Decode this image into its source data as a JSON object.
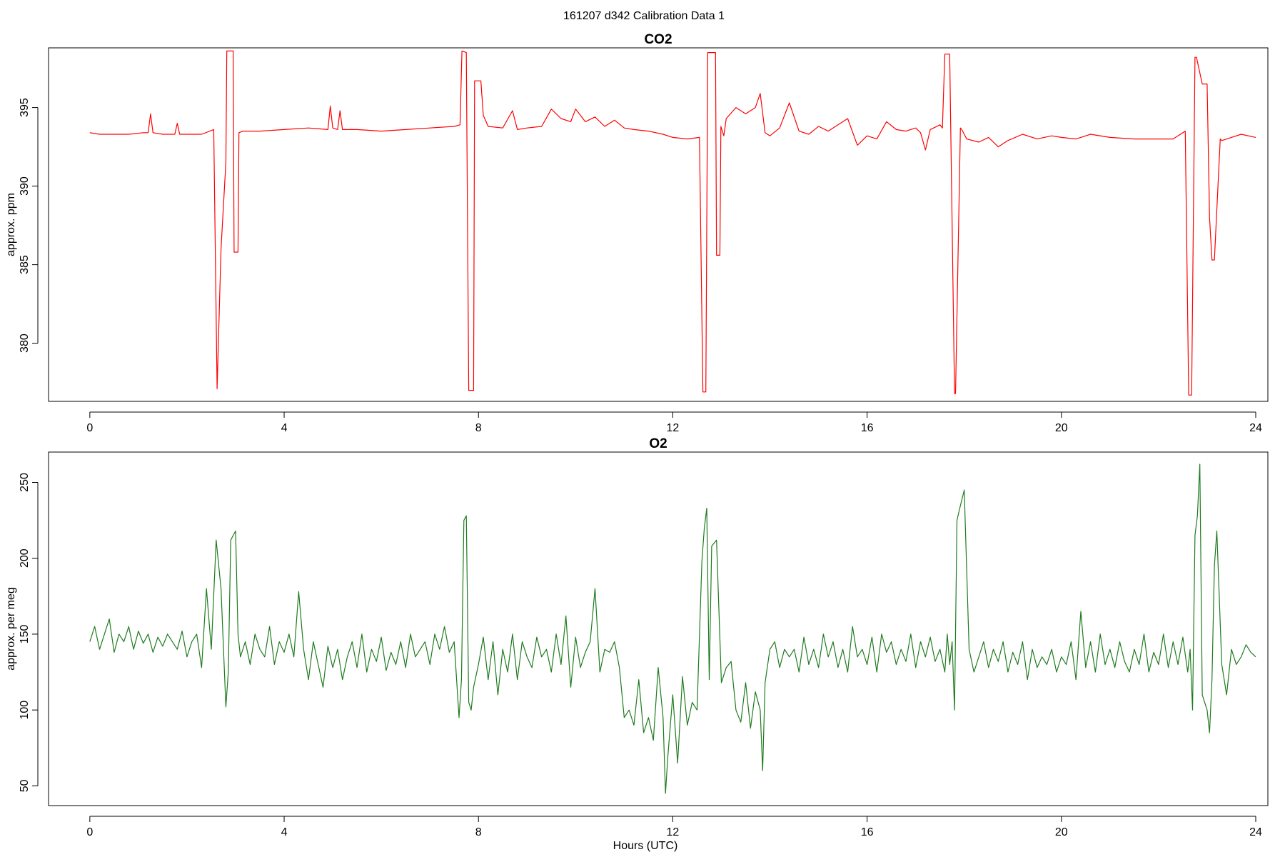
{
  "suptitle": "161207   d342   Calibration Data 1",
  "xlabel": "Hours (UTC)",
  "chart_data": [
    {
      "type": "line",
      "title": "CO2",
      "xlabel": "",
      "ylabel": "approx. ppm",
      "xlim": [
        -0.85,
        24.25
      ],
      "ylim": [
        376.3,
        398.8
      ],
      "xticks": [
        0,
        4,
        8,
        12,
        16,
        20,
        24
      ],
      "yticks": [
        380,
        385,
        390,
        395
      ],
      "grid": false,
      "color": "#ff0000",
      "series": [
        {
          "x": [
            0.0,
            0.2,
            0.5,
            0.8,
            1.1,
            1.2,
            1.25,
            1.3,
            1.5,
            1.75,
            1.8,
            1.85,
            2.0,
            2.3,
            2.55,
            2.62,
            2.7,
            2.8,
            2.82,
            2.95,
            2.97,
            3.05,
            3.07,
            3.15,
            3.5,
            4.0,
            4.5,
            4.9,
            4.95,
            5.0,
            5.1,
            5.15,
            5.2,
            5.5,
            6.0,
            6.5,
            7.0,
            7.5,
            7.62,
            7.66,
            7.75,
            7.8,
            7.9,
            7.92,
            8.05,
            8.1,
            8.2,
            8.5,
            8.7,
            8.8,
            9.0,
            9.3,
            9.5,
            9.7,
            9.9,
            10.0,
            10.2,
            10.4,
            10.6,
            10.8,
            11.0,
            11.2,
            11.5,
            11.8,
            12.0,
            12.3,
            12.55,
            12.62,
            12.68,
            12.72,
            12.88,
            12.9,
            12.97,
            12.99,
            13.05,
            13.1,
            13.3,
            13.5,
            13.7,
            13.8,
            13.9,
            14.0,
            14.2,
            14.4,
            14.6,
            14.8,
            15.0,
            15.2,
            15.4,
            15.6,
            15.8,
            16.0,
            16.2,
            16.4,
            16.6,
            16.8,
            17.0,
            17.1,
            17.2,
            17.3,
            17.5,
            17.55,
            17.6,
            17.7,
            17.8,
            17.82,
            17.92,
            17.95,
            18.05,
            18.3,
            18.5,
            18.7,
            18.9,
            19.2,
            19.5,
            19.8,
            20.0,
            20.3,
            20.6,
            21.0,
            21.5,
            22.0,
            22.3,
            22.55,
            22.62,
            22.68,
            22.75,
            22.78,
            22.9,
            23.0,
            23.05,
            23.1,
            23.15,
            23.27,
            23.3,
            23.5,
            23.7,
            24.0
          ],
          "y": [
            393.4,
            393.3,
            393.3,
            393.3,
            393.4,
            393.4,
            394.6,
            393.4,
            393.3,
            393.3,
            394.0,
            393.3,
            393.3,
            393.3,
            393.6,
            377.1,
            386.0,
            391.5,
            398.6,
            398.6,
            385.8,
            385.8,
            393.4,
            393.5,
            393.5,
            393.6,
            393.7,
            393.6,
            395.1,
            393.7,
            393.6,
            394.8,
            393.6,
            393.6,
            393.5,
            393.6,
            393.7,
            393.8,
            393.9,
            398.6,
            398.5,
            377.0,
            377.0,
            396.7,
            396.7,
            394.5,
            393.8,
            393.7,
            394.8,
            393.6,
            393.7,
            393.8,
            394.9,
            394.3,
            394.1,
            394.9,
            394.1,
            394.4,
            393.8,
            394.2,
            393.7,
            393.6,
            393.5,
            393.3,
            393.1,
            393.0,
            393.1,
            376.9,
            376.9,
            398.5,
            398.5,
            385.6,
            385.6,
            393.8,
            393.2,
            394.3,
            395.0,
            394.6,
            395.0,
            395.9,
            393.4,
            393.2,
            393.7,
            395.3,
            393.5,
            393.3,
            393.8,
            393.5,
            393.9,
            394.3,
            392.6,
            393.2,
            393.0,
            394.1,
            393.6,
            393.5,
            393.7,
            393.4,
            392.3,
            393.6,
            393.9,
            393.7,
            398.4,
            398.4,
            376.8,
            376.8,
            393.7,
            393.6,
            393.0,
            392.8,
            393.1,
            392.5,
            392.9,
            393.3,
            393.0,
            393.2,
            393.1,
            393.0,
            393.3,
            393.1,
            393.0,
            393.0,
            393.0,
            393.5,
            376.7,
            376.7,
            398.2,
            398.2,
            396.5,
            396.5,
            388.0,
            385.3,
            385.3,
            393.0,
            392.9,
            393.1,
            393.3,
            393.1
          ]
        }
      ]
    },
    {
      "type": "line",
      "title": "O2",
      "xlabel": "Hours (UTC)",
      "ylabel": "approx. per meg",
      "xlim": [
        -0.85,
        24.25
      ],
      "ylim": [
        37,
        270
      ],
      "xticks": [
        0,
        4,
        8,
        12,
        16,
        20,
        24
      ],
      "yticks": [
        50,
        100,
        150,
        200,
        250
      ],
      "grid": false,
      "color": "#1e7b1e",
      "series": [
        {
          "x": [
            0.0,
            0.1,
            0.2,
            0.3,
            0.4,
            0.5,
            0.6,
            0.7,
            0.8,
            0.9,
            1.0,
            1.1,
            1.2,
            1.3,
            1.4,
            1.5,
            1.6,
            1.7,
            1.8,
            1.9,
            2.0,
            2.1,
            2.2,
            2.3,
            2.4,
            2.5,
            2.6,
            2.7,
            2.8,
            2.85,
            2.9,
            3.0,
            3.05,
            3.1,
            3.2,
            3.3,
            3.4,
            3.5,
            3.6,
            3.7,
            3.8,
            3.9,
            4.0,
            4.1,
            4.2,
            4.3,
            4.4,
            4.5,
            4.6,
            4.7,
            4.8,
            4.9,
            5.0,
            5.1,
            5.2,
            5.3,
            5.4,
            5.5,
            5.6,
            5.7,
            5.8,
            5.9,
            6.0,
            6.1,
            6.2,
            6.3,
            6.4,
            6.5,
            6.6,
            6.7,
            6.8,
            6.9,
            7.0,
            7.1,
            7.2,
            7.3,
            7.4,
            7.5,
            7.6,
            7.65,
            7.7,
            7.75,
            7.8,
            7.85,
            7.9,
            8.0,
            8.1,
            8.2,
            8.3,
            8.4,
            8.5,
            8.6,
            8.7,
            8.8,
            8.9,
            9.0,
            9.1,
            9.2,
            9.3,
            9.4,
            9.5,
            9.6,
            9.7,
            9.8,
            9.9,
            10.0,
            10.1,
            10.2,
            10.3,
            10.4,
            10.5,
            10.6,
            10.7,
            10.8,
            10.9,
            11.0,
            11.1,
            11.2,
            11.3,
            11.4,
            11.5,
            11.6,
            11.7,
            11.8,
            11.85,
            11.9,
            12.0,
            12.1,
            12.2,
            12.3,
            12.4,
            12.5,
            12.6,
            12.65,
            12.7,
            12.75,
            12.8,
            12.9,
            13.0,
            13.1,
            13.2,
            13.3,
            13.4,
            13.5,
            13.6,
            13.7,
            13.8,
            13.85,
            13.9,
            14.0,
            14.1,
            14.2,
            14.3,
            14.4,
            14.5,
            14.6,
            14.7,
            14.8,
            14.9,
            15.0,
            15.1,
            15.2,
            15.3,
            15.4,
            15.5,
            15.6,
            15.7,
            15.8,
            15.9,
            16.0,
            16.1,
            16.2,
            16.3,
            16.4,
            16.5,
            16.6,
            16.7,
            16.8,
            16.9,
            17.0,
            17.1,
            17.2,
            17.3,
            17.4,
            17.5,
            17.6,
            17.65,
            17.7,
            17.75,
            17.8,
            17.85,
            17.9,
            18.0,
            18.1,
            18.2,
            18.3,
            18.4,
            18.5,
            18.6,
            18.7,
            18.8,
            18.9,
            19.0,
            19.1,
            19.2,
            19.3,
            19.4,
            19.5,
            19.6,
            19.7,
            19.8,
            19.9,
            20.0,
            20.1,
            20.2,
            20.3,
            20.4,
            20.5,
            20.6,
            20.7,
            20.8,
            20.9,
            21.0,
            21.1,
            21.2,
            21.3,
            21.4,
            21.5,
            21.6,
            21.7,
            21.8,
            21.9,
            22.0,
            22.1,
            22.2,
            22.3,
            22.4,
            22.5,
            22.6,
            22.65,
            22.7,
            22.75,
            22.8,
            22.85,
            22.9,
            23.0,
            23.05,
            23.1,
            23.15,
            23.2,
            23.3,
            23.4,
            23.5,
            23.6,
            23.7,
            23.8,
            23.9,
            24.0
          ],
          "y": [
            145,
            155,
            140,
            150,
            160,
            138,
            150,
            145,
            155,
            140,
            152,
            144,
            150,
            138,
            148,
            142,
            150,
            145,
            140,
            152,
            135,
            145,
            150,
            128,
            180,
            140,
            212,
            180,
            102,
            125,
            212,
            218,
            150,
            135,
            145,
            130,
            150,
            140,
            135,
            155,
            130,
            145,
            138,
            150,
            135,
            178,
            140,
            120,
            145,
            130,
            115,
            142,
            128,
            140,
            120,
            135,
            145,
            128,
            150,
            125,
            140,
            132,
            148,
            126,
            138,
            130,
            145,
            128,
            150,
            135,
            140,
            145,
            130,
            150,
            140,
            155,
            138,
            145,
            95,
            120,
            225,
            228,
            105,
            100,
            115,
            130,
            148,
            120,
            145,
            110,
            140,
            125,
            150,
            120,
            145,
            135,
            128,
            148,
            135,
            140,
            125,
            150,
            130,
            162,
            115,
            148,
            128,
            138,
            145,
            180,
            125,
            140,
            138,
            145,
            128,
            95,
            100,
            90,
            120,
            85,
            95,
            80,
            128,
            95,
            45,
            70,
            110,
            65,
            122,
            90,
            105,
            100,
            198,
            220,
            233,
            120,
            208,
            212,
            118,
            128,
            132,
            100,
            92,
            118,
            88,
            112,
            100,
            60,
            118,
            140,
            145,
            128,
            140,
            135,
            140,
            125,
            148,
            130,
            140,
            128,
            150,
            135,
            145,
            128,
            140,
            125,
            155,
            135,
            140,
            130,
            148,
            125,
            150,
            138,
            145,
            130,
            140,
            132,
            150,
            128,
            145,
            135,
            148,
            132,
            140,
            125,
            150,
            130,
            145,
            100,
            225,
            232,
            245,
            140,
            125,
            135,
            145,
            128,
            140,
            132,
            145,
            125,
            138,
            130,
            145,
            120,
            140,
            128,
            135,
            130,
            140,
            125,
            135,
            130,
            145,
            120,
            165,
            128,
            145,
            125,
            150,
            130,
            140,
            128,
            145,
            132,
            125,
            140,
            130,
            150,
            125,
            138,
            130,
            150,
            128,
            145,
            130,
            148,
            125,
            140,
            100,
            215,
            228,
            262,
            110,
            100,
            85,
            120,
            195,
            218,
            130,
            110,
            140,
            130,
            135,
            143,
            138,
            135
          ]
        }
      ]
    }
  ]
}
